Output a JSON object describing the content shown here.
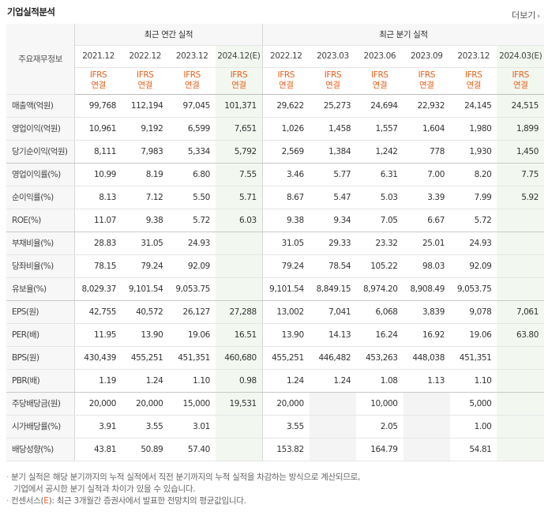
{
  "header": {
    "title": "기업실적분석",
    "more_label": "더보기",
    "more_arrow": "›"
  },
  "table": {
    "rowhead": "주요재무정보",
    "annual_group": "최근 연간 실적",
    "quarter_group": "최근 분기 실적",
    "annual_periods": [
      "2021.12",
      "2022.12",
      "2023.12",
      "2024.12(E)"
    ],
    "quarter_periods": [
      "2022.12",
      "2023.03",
      "2023.06",
      "2023.09",
      "2023.12",
      "2024.03(E)"
    ],
    "basis_line1": "IFRS",
    "basis_line2": "연결",
    "rows": [
      {
        "label": "매출액(억원)",
        "values": [
          "99,768",
          "112,194",
          "97,045",
          "101,371",
          "29,622",
          "25,273",
          "24,694",
          "22,932",
          "24,145",
          "24,515"
        ]
      },
      {
        "label": "영업이익(억원)",
        "values": [
          "10,961",
          "9,192",
          "6,599",
          "7,651",
          "1,026",
          "1,458",
          "1,557",
          "1,604",
          "1,980",
          "1,899"
        ]
      },
      {
        "label": "당기순이익(억원)",
        "values": [
          "8,111",
          "7,983",
          "5,334",
          "5,792",
          "2,569",
          "1,384",
          "1,242",
          "778",
          "1,930",
          "1,450"
        ]
      },
      {
        "label": "영업이익률(%)",
        "values": [
          "10.99",
          "8.19",
          "6.80",
          "7.55",
          "3.46",
          "5.77",
          "6.31",
          "7.00",
          "8.20",
          "7.75"
        ]
      },
      {
        "label": "순이익률(%)",
        "values": [
          "8.13",
          "7.12",
          "5.50",
          "5.71",
          "8.67",
          "5.47",
          "5.03",
          "3.39",
          "7.99",
          "5.92"
        ]
      },
      {
        "label": "ROE(%)",
        "values": [
          "11.07",
          "9.38",
          "5.72",
          "6.03",
          "9.38",
          "9.34",
          "7.05",
          "6.67",
          "5.72",
          ""
        ]
      },
      {
        "label": "부채비율(%)",
        "values": [
          "28.83",
          "31.05",
          "24.93",
          "",
          "31.05",
          "29.33",
          "23.32",
          "25.01",
          "24.93",
          ""
        ]
      },
      {
        "label": "당좌비율(%)",
        "values": [
          "78.15",
          "79.24",
          "92.09",
          "",
          "79.24",
          "78.54",
          "105.22",
          "98.03",
          "92.09",
          ""
        ]
      },
      {
        "label": "유보율(%)",
        "values": [
          "8,029.37",
          "9,101.54",
          "9,053.75",
          "",
          "9,101.54",
          "8,849.15",
          "8,974.20",
          "8,908.49",
          "9,053.75",
          ""
        ]
      },
      {
        "label": "EPS(원)",
        "values": [
          "42,755",
          "40,572",
          "26,127",
          "27,288",
          "13,002",
          "7,041",
          "6,068",
          "3,839",
          "9,078",
          "7,061"
        ]
      },
      {
        "label": "PER(배)",
        "values": [
          "11.95",
          "13.90",
          "19.06",
          "16.51",
          "13.90",
          "14.13",
          "16.24",
          "16.92",
          "19.06",
          "63.80"
        ]
      },
      {
        "label": "BPS(원)",
        "values": [
          "430,439",
          "455,251",
          "451,351",
          "460,680",
          "455,251",
          "446,482",
          "453,263",
          "448,038",
          "451,351",
          ""
        ]
      },
      {
        "label": "PBR(배)",
        "values": [
          "1.19",
          "1.24",
          "1.10",
          "0.98",
          "1.24",
          "1.24",
          "1.08",
          "1.13",
          "1.10",
          ""
        ]
      },
      {
        "label": "주당배당금(원)",
        "values": [
          "20,000",
          "20,000",
          "15,000",
          "19,531",
          "20,000",
          "",
          "10,000",
          "",
          "5,000",
          ""
        ]
      },
      {
        "label": "시가배당률(%)",
        "values": [
          "3.91",
          "3.55",
          "3.01",
          "",
          "3.55",
          "",
          "2.05",
          "",
          "1.00",
          ""
        ]
      },
      {
        "label": "배당성향(%)",
        "values": [
          "43.81",
          "50.89",
          "57.40",
          "",
          "153.82",
          "",
          "164.79",
          "",
          "54.81",
          ""
        ]
      }
    ]
  },
  "notes": {
    "note1_line1": "분기 실적은 해당 분기까지의 누적 실적에서 직전 분기까지의 누적 실적을 차감하는 방식으로 계산되므로,",
    "note1_line2": "기업에서 공시한 분기 실적과 차이가 있을 수 있습니다.",
    "note2_prefix": "컨센서스(",
    "note2_e": "E",
    "note2_suffix": "): 최근 3개월간 증권사에서 발표한 전망치의 평균값입니다."
  }
}
